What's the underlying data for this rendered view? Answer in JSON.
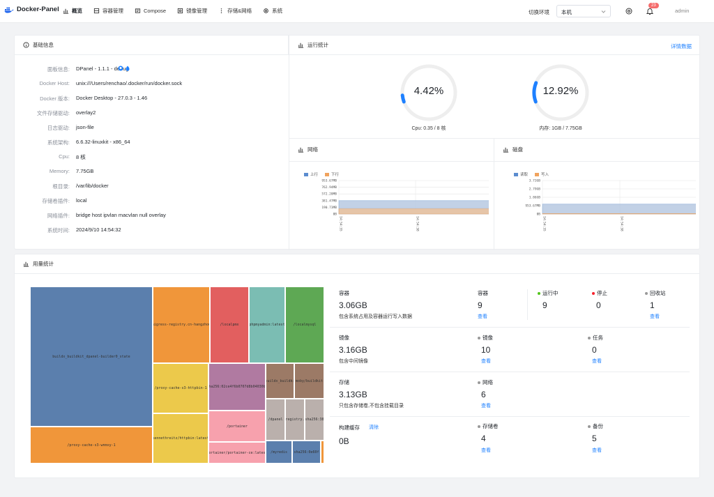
{
  "app": {
    "title": "Docker-Panel"
  },
  "nav": [
    {
      "label": "概览",
      "icon": "bar-chart-icon"
    },
    {
      "label": "容器管理",
      "icon": "container-icon"
    },
    {
      "label": "Compose",
      "icon": "compose-icon"
    },
    {
      "label": "镜像管理",
      "icon": "image-icon"
    },
    {
      "label": "存储&网络",
      "icon": "storage-icon"
    },
    {
      "label": "系统",
      "icon": "settings-icon"
    }
  ],
  "topbar": {
    "env_label": "切换环境",
    "env_value": "本机",
    "notification_count": "23",
    "user": "admin"
  },
  "basic": {
    "title": "基础信息",
    "rows": [
      {
        "k": "面板信息:",
        "v": "DPanel - 1.1.1 - debug"
      },
      {
        "k": "Docker Host:",
        "v": "unix:///Users/renchao/.docker/run/docker.sock"
      },
      {
        "k": "Docker 版本:",
        "v": "Docker Desktop - 27.0.3 - 1.46"
      },
      {
        "k": "文件存储驱动:",
        "v": "overlay2"
      },
      {
        "k": "日志驱动:",
        "v": "json-file"
      },
      {
        "k": "系统架构:",
        "v": "6.6.32-linuxkit - x86_64"
      },
      {
        "k": "Cpu:",
        "v": "8 核"
      },
      {
        "k": "Memory:",
        "v": "7.75GB"
      },
      {
        "k": "根目录:",
        "v": "/var/lib/docker"
      },
      {
        "k": "存储卷插件:",
        "v": "local"
      },
      {
        "k": "网络插件:",
        "v": "bridge  host  ipvlan  macvlan  null  overlay"
      },
      {
        "k": "系统时间:",
        "v": "2024/9/10 14:54:32"
      }
    ]
  },
  "runtime": {
    "title": "运行统计",
    "detail_link": "详情数据",
    "cpu": {
      "value_text": "4.42%",
      "percent": 4.42,
      "caption": "Cpu: 0.35 / 8 核"
    },
    "mem": {
      "value_text": "12.92%",
      "percent": 12.92,
      "caption": "内存: 1GB / 7.75GB"
    }
  },
  "network": {
    "title": "网络",
    "legend": [
      "上行",
      "下行"
    ],
    "yticks": [
      "953.67MB",
      "762.94MB",
      "572.20MB",
      "381.47MB",
      "190.73MB",
      "0B"
    ],
    "xticks": [
      "14:54:35",
      "14:54:38",
      "14:54:41"
    ]
  },
  "disk": {
    "title": "磁盘",
    "legend": [
      "读取",
      "写入"
    ],
    "yticks": [
      "3.73GB",
      "2.79GB",
      "1.86GB",
      "953.67MB",
      "0B"
    ],
    "xticks": [
      "14:54:35",
      "14:54:38",
      "14:54:41"
    ]
  },
  "chart_data": [
    {
      "type": "area",
      "title": "网络",
      "x": [
        "14:54:35",
        "14:54:38",
        "14:54:41"
      ],
      "series": [
        {
          "name": "上行",
          "values": [
            "381.47MB",
            "381.47MB",
            "381.47MB"
          ]
        },
        {
          "name": "下行",
          "values": [
            "150MB",
            "150MB",
            "150MB"
          ]
        }
      ],
      "ylim": [
        "0B",
        "953.67MB"
      ],
      "legend": "top-left",
      "grid": true
    },
    {
      "type": "area",
      "title": "磁盘",
      "x": [
        "14:54:35",
        "14:54:38",
        "14:54:41"
      ],
      "series": [
        {
          "name": "读取",
          "values": [
            "1.1GB",
            "1.1GB",
            "1.1GB"
          ]
        },
        {
          "name": "写入",
          "values": [
            "0.05GB",
            "0.05GB",
            "0.05GB"
          ]
        }
      ],
      "ylim": [
        "0B",
        "3.73GB"
      ],
      "legend": "top-left",
      "grid": true
    }
  ],
  "usage": {
    "title": "用量统计",
    "treemap": [
      {
        "label": "buildx_buildkit_dpanel-builder0_state",
        "color": "#5b7fad"
      },
      {
        "label": "/proxy-cache-s3-wnmxy-1",
        "color": "#f0963a"
      },
      {
        "label": "higress-registry.cn-hangzhou",
        "color": "#f0963a"
      },
      {
        "label": "/localpmx",
        "color": "#e25f5f"
      },
      {
        "label": "phpmyadmin:latest",
        "color": "#7bbdb3"
      },
      {
        "label": "/localmysql",
        "color": "#5ea854"
      },
      {
        "label": "/proxy-cache-s3-httpbin-1",
        "color": "#ecc94b"
      },
      {
        "label": "kennethreitz/httpbin:latest",
        "color": "#ecc94b"
      },
      {
        "label": "sha256:02ce4f6b0707d8b04030b6",
        "color": "#b07aa1"
      },
      {
        "label": "/portainer",
        "color": "#f7a1ad"
      },
      {
        "label": "portainer/portainer-ce:latest",
        "color": "#f7a1ad"
      },
      {
        "label": "/buildx_buildkit",
        "color": "#9c7a66"
      },
      {
        "label": "moby/buildkit",
        "color": "#9c7a66"
      },
      {
        "label": "/dpanel",
        "color": "#bab0ac"
      },
      {
        "label": "registry.",
        "color": "#bab0ac"
      },
      {
        "label": "sha256:38",
        "color": "#bab0ac"
      },
      {
        "label": "/myredis",
        "color": "#5b7fad"
      },
      {
        "label": "sha256:0e60f",
        "color": "#5b7fad"
      },
      {
        "label": "",
        "color": "#f0963a"
      }
    ],
    "sections": {
      "container": {
        "title": "容器",
        "size": "3.06GB",
        "desc": "包含系统占用及容器运行写入数据",
        "count_label": "容器",
        "count": "9",
        "link": "查看",
        "running_label": "运行中",
        "running": "9",
        "stopped_label": "停止",
        "stopped": "0",
        "trash_label": "回收站",
        "trash": "1",
        "trash_link": "查看"
      },
      "image": {
        "title": "镜像",
        "size": "3.16GB",
        "desc": "包含中间镜像",
        "count_label": "镜像",
        "count": "10",
        "link": "查看",
        "task_label": "任务",
        "task": "0",
        "task_link": "查看"
      },
      "storage": {
        "title": "存储",
        "size": "3.13GB",
        "desc": "只包含存储卷,不包含挂载目录",
        "count_label": "网络",
        "count": "6",
        "link": "查看"
      },
      "cache": {
        "title": "构建缓存",
        "clear": "清除",
        "size": "0B",
        "volume_label": "存储卷",
        "volume": "4",
        "volume_link": "查看",
        "backup_label": "备份",
        "backup": "5",
        "backup_link": "查看"
      }
    },
    "colors": {
      "running": "#52c41a",
      "stopped": "#f5222d",
      "trash": "#999999",
      "link": "#1e80ff"
    }
  }
}
